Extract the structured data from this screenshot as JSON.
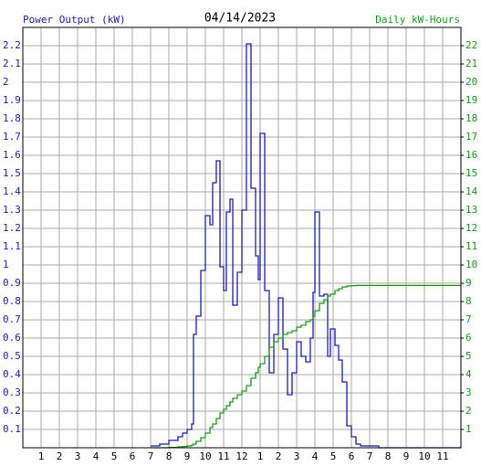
{
  "chart_data": {
    "type": "line",
    "title": "04/14/2023",
    "y_label": "Power Output (kW)",
    "y2_label": "Daily kW-Hours",
    "xlim": [
      0,
      24
    ],
    "ylim": [
      0,
      2.3
    ],
    "y2lim": [
      0,
      23
    ],
    "grid": true,
    "step": true,
    "xticks": [
      1,
      2,
      3,
      4,
      5,
      6,
      7,
      8,
      9,
      10,
      11,
      12,
      {
        "value": 13,
        "label": "1"
      },
      {
        "value": 14,
        "label": "2"
      },
      {
        "value": 15,
        "label": "3"
      },
      {
        "value": 16,
        "label": "4"
      },
      {
        "value": 17,
        "label": "5"
      },
      {
        "value": 18,
        "label": "6"
      },
      {
        "value": 19,
        "label": "7"
      },
      {
        "value": 20,
        "label": "8"
      },
      {
        "value": 21,
        "label": "9"
      },
      {
        "value": 22,
        "label": "10"
      },
      {
        "value": 23,
        "label": "11"
      }
    ],
    "yticks": [
      0.1,
      0.2,
      0.3,
      0.4,
      0.5,
      0.6,
      0.7,
      0.8,
      0.9,
      1.0,
      1.1,
      1.2,
      1.3,
      1.4,
      1.5,
      1.6,
      1.7,
      1.8,
      1.9,
      2.0,
      2.1,
      2.2
    ],
    "y2ticks": [
      1,
      2,
      3,
      4,
      5,
      6,
      7,
      8,
      9,
      10,
      11,
      12,
      13,
      14,
      15,
      16,
      17,
      18,
      19,
      20,
      21,
      22
    ],
    "x": [
      7.0,
      7.5,
      8.0,
      8.5,
      8.75,
      9.0,
      9.25,
      9.35,
      9.5,
      9.75,
      10.0,
      10.25,
      10.4,
      10.6,
      10.8,
      11.0,
      11.15,
      11.35,
      11.5,
      11.75,
      12.0,
      12.25,
      12.5,
      12.75,
      12.9,
      13.0,
      13.25,
      13.5,
      13.75,
      14.0,
      14.25,
      14.5,
      14.75,
      15.0,
      15.25,
      15.5,
      15.75,
      15.9,
      16.0,
      16.25,
      16.5,
      16.7,
      16.85,
      17.1,
      17.3,
      17.5,
      17.75,
      18.0,
      18.25,
      18.5,
      19.5,
      24
    ],
    "series": [
      {
        "name": "Power Output",
        "color": "#1c1cb0",
        "axis": "y",
        "values": [
          0.01,
          0.02,
          0.04,
          0.06,
          0.08,
          0.1,
          0.13,
          0.62,
          0.72,
          0.97,
          1.27,
          1.22,
          1.45,
          1.57,
          0.99,
          0.86,
          1.29,
          1.36,
          0.78,
          0.96,
          1.3,
          2.21,
          1.42,
          1.05,
          0.92,
          1.72,
          0.86,
          0.41,
          0.62,
          0.82,
          0.54,
          0.29,
          0.41,
          0.58,
          0.5,
          0.47,
          0.6,
          0.85,
          1.29,
          0.83,
          0.84,
          0.5,
          0.65,
          0.56,
          0.48,
          0.36,
          0.12,
          0.06,
          0.02,
          0.01,
          0,
          0
        ]
      },
      {
        "name": "Daily kW-Hours",
        "color": "#1a9a1a",
        "axis": "y2",
        "values": [
          0,
          0,
          0.02,
          0.05,
          0.07,
          0.1,
          0.15,
          0.2,
          0.35,
          0.55,
          0.8,
          1.1,
          1.3,
          1.6,
          1.9,
          2.1,
          2.3,
          2.5,
          2.7,
          2.9,
          3.1,
          3.4,
          3.8,
          4.1,
          4.4,
          4.6,
          5.0,
          5.5,
          5.8,
          6.0,
          6.2,
          6.3,
          6.4,
          6.6,
          6.7,
          6.9,
          7.0,
          7.2,
          7.5,
          7.9,
          8.1,
          8.3,
          8.4,
          8.6,
          8.7,
          8.8,
          8.85,
          8.87,
          8.88,
          8.88,
          8.88,
          8.88
        ]
      }
    ]
  }
}
